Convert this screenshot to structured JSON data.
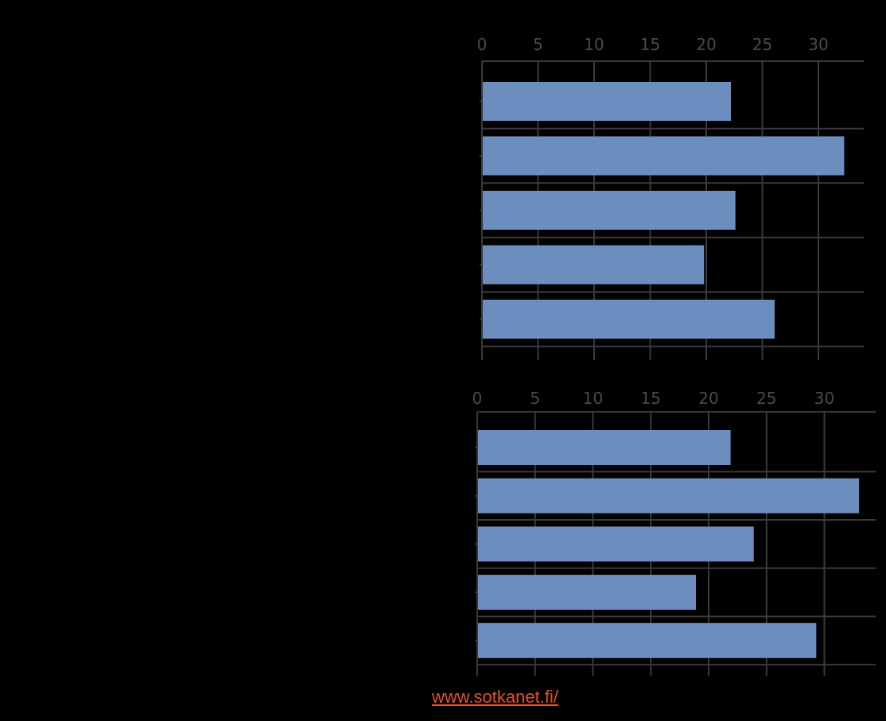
{
  "chart_data": [
    {
      "type": "bar",
      "orientation": "horizontal",
      "xlim": [
        0,
        34
      ],
      "ticks": [
        0,
        5,
        10,
        15,
        20,
        25,
        30
      ],
      "tick_labels": [
        "0",
        "5",
        "10",
        "15",
        "20",
        "25",
        "30"
      ],
      "values": [
        22.2,
        32.3,
        22.6,
        19.8,
        26.1
      ],
      "bar_color": "#6c8ebf",
      "grid": true
    },
    {
      "type": "bar",
      "orientation": "horizontal",
      "xlim": [
        0,
        34
      ],
      "ticks": [
        0,
        5,
        10,
        15,
        20,
        25,
        30
      ],
      "tick_labels": [
        "0",
        "5",
        "10",
        "15",
        "20",
        "25",
        "30"
      ],
      "values": [
        21.9,
        33.0,
        23.9,
        18.9,
        29.3
      ],
      "bar_color": "#6c8ebf",
      "grid": true
    }
  ],
  "source_link": "www.sotkanet.fi/"
}
